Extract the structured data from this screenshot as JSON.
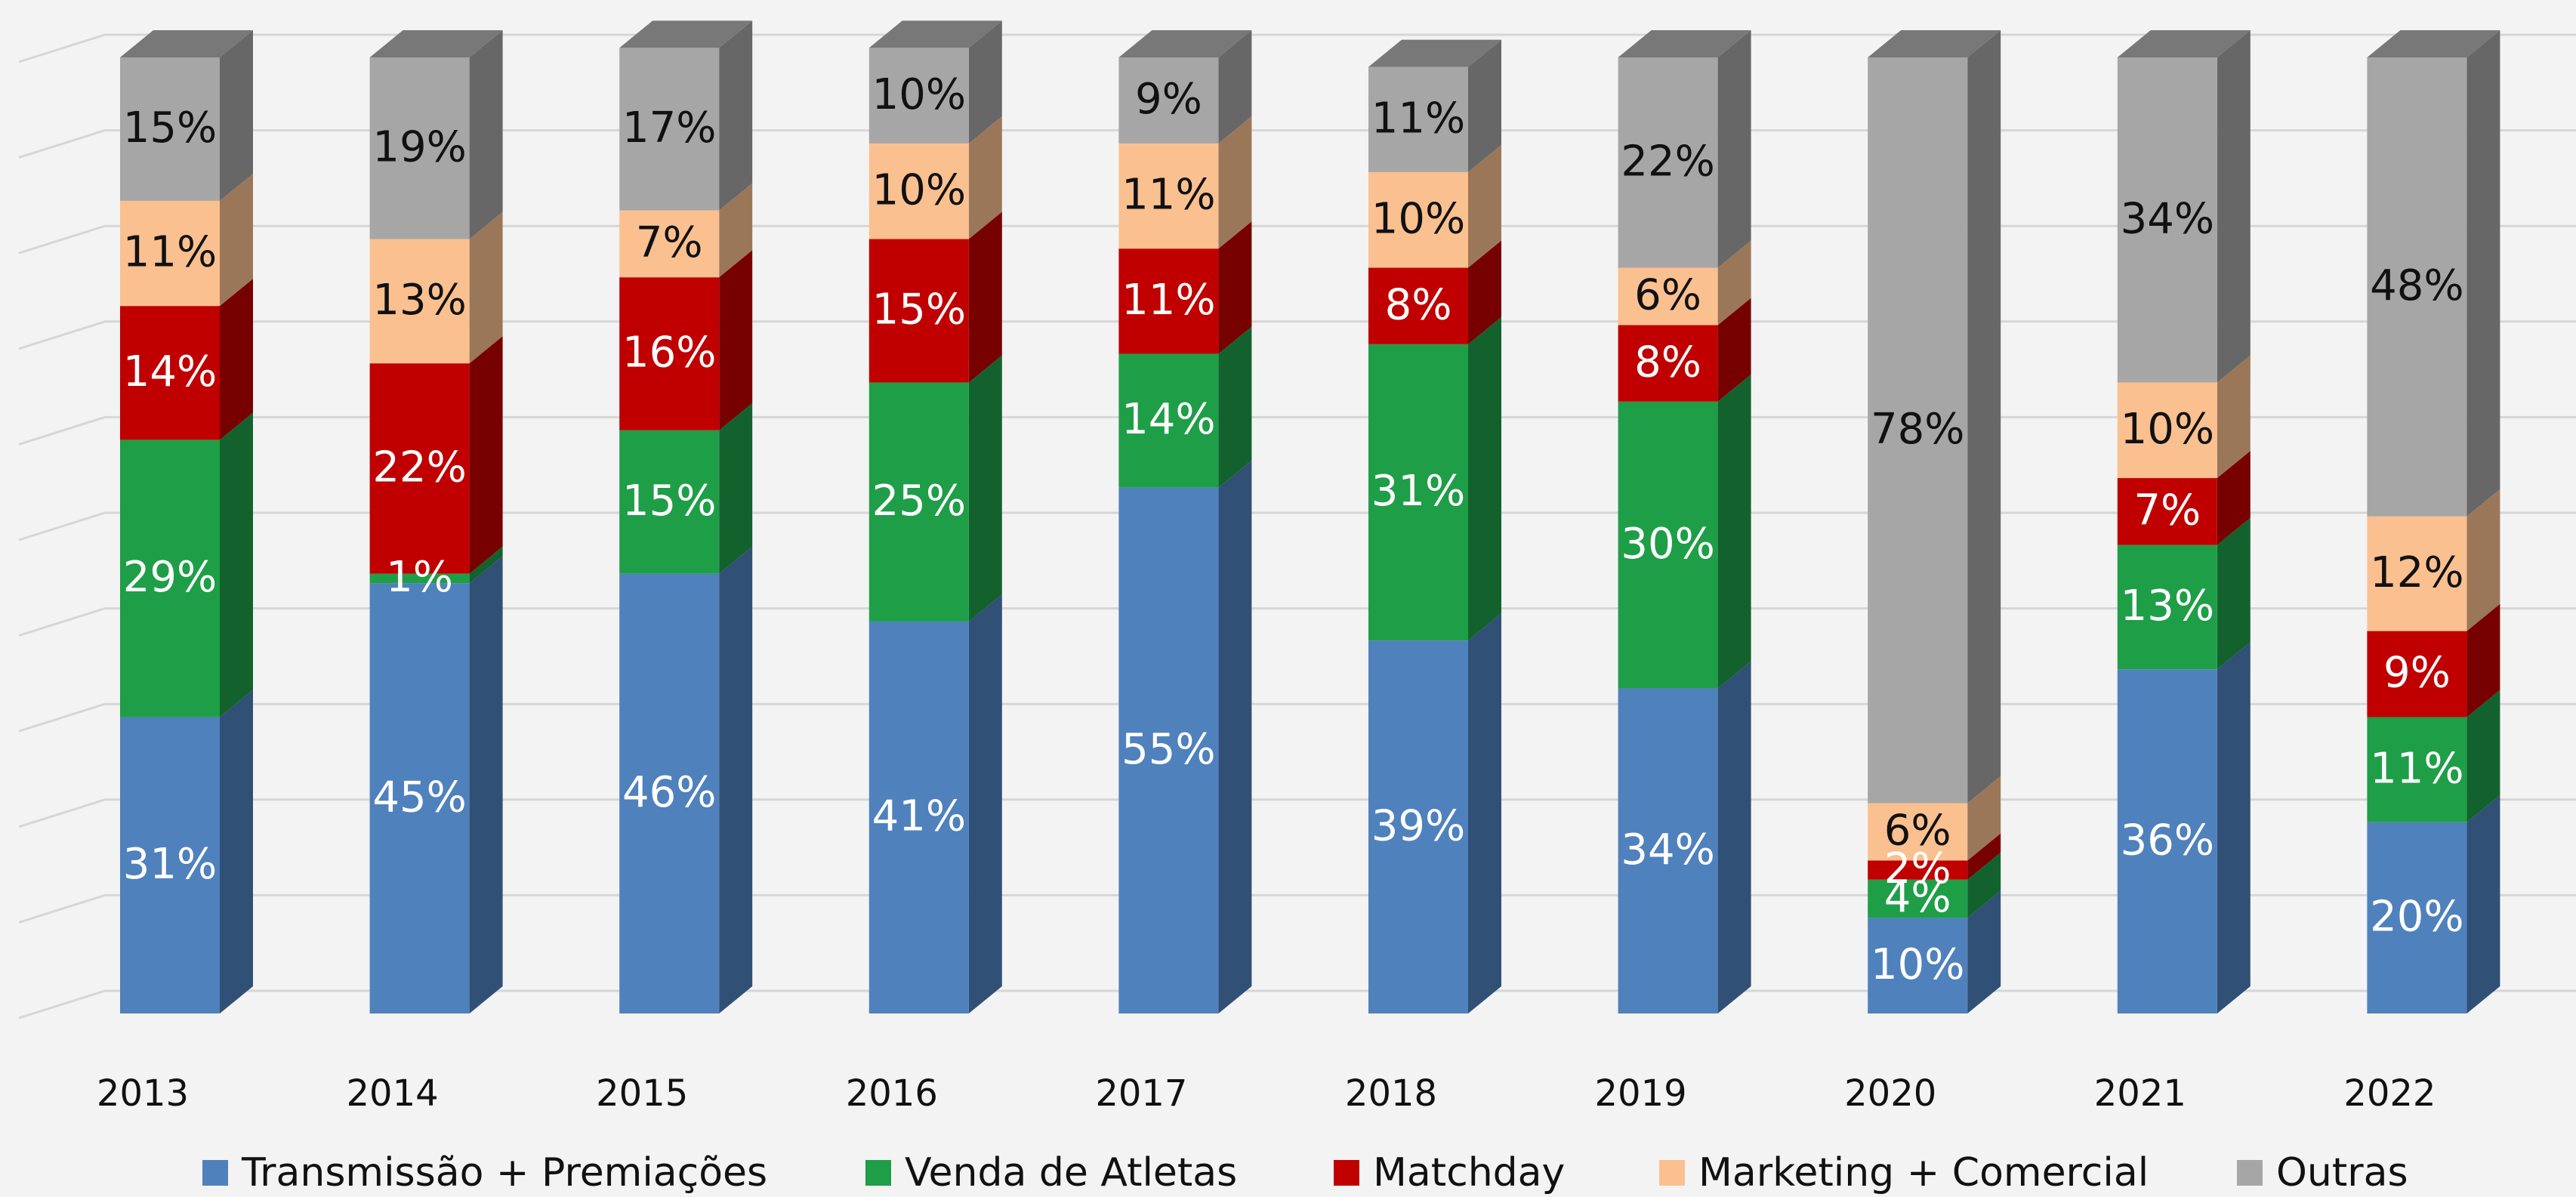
{
  "chart_data": {
    "type": "bar",
    "stacked": true,
    "categories": [
      "2013",
      "2014",
      "2015",
      "2016",
      "2017",
      "2018",
      "2019",
      "2020",
      "2021",
      "2022"
    ],
    "series": [
      {
        "name": "Transmissão + Premiações",
        "color": "#4f81bd",
        "values": [
          31,
          45,
          46,
          41,
          55,
          39,
          34,
          10,
          36,
          20
        ],
        "value_labels": [
          "31%",
          "45%",
          "46%",
          "41%",
          "55%",
          "39%",
          "34%",
          "10%",
          "36%",
          "20%"
        ]
      },
      {
        "name": "Venda de Atletas",
        "color": "#1f9e48",
        "values": [
          29,
          1,
          15,
          25,
          14,
          31,
          30,
          4,
          13,
          11
        ],
        "value_labels": [
          "29%",
          "1%",
          "15%",
          "25%",
          "14%",
          "31%",
          "30%",
          "4%",
          "13%",
          "11%"
        ]
      },
      {
        "name": "Matchday",
        "color": "#c00000",
        "values": [
          14,
          22,
          16,
          15,
          11,
          8,
          8,
          2,
          7,
          9
        ],
        "value_labels": [
          "14%",
          "22%",
          "16%",
          "15%",
          "11%",
          "8%",
          "8%",
          "2%",
          "7%",
          "9%"
        ]
      },
      {
        "name": "Marketing + Comercial",
        "color": "#fac090",
        "values": [
          11,
          13,
          7,
          10,
          11,
          10,
          6,
          6,
          10,
          12
        ],
        "value_labels": [
          "11%",
          "13%",
          "7%",
          "10%",
          "11%",
          "10%",
          "6%",
          "6%",
          "10%",
          "12%"
        ]
      },
      {
        "name": "Outras",
        "color": "#a6a6a6",
        "values": [
          15,
          19,
          17,
          10,
          9,
          11,
          22,
          78,
          34,
          48
        ],
        "value_labels": [
          "15%",
          "19%",
          "17%",
          "10%",
          "9%",
          "11%",
          "22%",
          "78%",
          "34%",
          "48%"
        ]
      }
    ],
    "ylim": [
      0,
      100
    ],
    "yticks": [
      0,
      10,
      20,
      30,
      40,
      50,
      60,
      70,
      80,
      90,
      100
    ],
    "grid": true
  }
}
